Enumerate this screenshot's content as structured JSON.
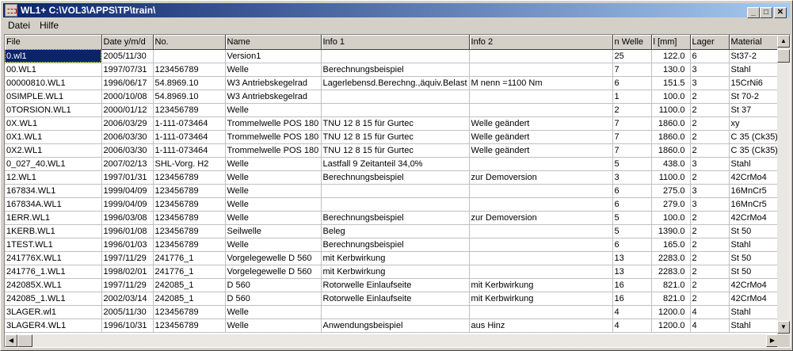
{
  "window": {
    "title": "WL1+  C:\\VOL3\\APPS\\TP\\train\\",
    "minimize": "_",
    "maximize": "□",
    "close": "✕"
  },
  "menu": [
    {
      "label": "Datei",
      "accel": "D"
    },
    {
      "label": "Hilfe",
      "accel": "H"
    }
  ],
  "table": {
    "columns": [
      "File",
      "Date  y/m/d",
      "No.",
      "Name",
      "Info 1",
      "Info 2",
      "n Welle",
      "l [mm]",
      "Lager",
      "Material"
    ],
    "selected_row": 0,
    "rows": [
      [
        "0.wl1",
        "2005/11/30",
        "",
        "Version1",
        "",
        "",
        "25",
        "122.0",
        "6",
        "St37-2"
      ],
      [
        "00.WL1",
        "1997/07/31",
        "123456789",
        "Welle",
        "Berechnungsbeispiel",
        "",
        "7",
        "130.0",
        "3",
        "Stahl"
      ],
      [
        "00000810.WL1",
        "1996/06/17",
        "54.8969.10",
        "W3 Antriebskegelrad",
        "Lagerlebensd.Berechng.,äquiv.Belast",
        "M nenn =1100 Nm",
        "6",
        "151.5",
        "3",
        "15CrNi6"
      ],
      [
        "0SIMPLE.WL1",
        "2000/10/08",
        "54.8969.10",
        "W3 Antriebskegelrad",
        "",
        "",
        "1",
        "100.0",
        "2",
        "St 70-2"
      ],
      [
        "0TORSION.WL1",
        "2000/01/12",
        "123456789",
        "Welle",
        "",
        "",
        "2",
        "1100.0",
        "2",
        "St 37"
      ],
      [
        "0X.WL1",
        "2006/03/29",
        "1-111-073464",
        "Trommelwelle POS 180",
        "TNU 12 8 15 für Gurtec",
        "Welle geändert",
        "7",
        "1860.0",
        "2",
        "xy"
      ],
      [
        "0X1.WL1",
        "2006/03/30",
        "1-111-073464",
        "Trommelwelle POS 180",
        "TNU 12 8 15 für Gurtec",
        "Welle geändert",
        "7",
        "1860.0",
        "2",
        "C 35 (Ck35)"
      ],
      [
        "0X2.WL1",
        "2006/03/30",
        "1-111-073464",
        "Trommelwelle POS 180",
        "TNU 12 8 15 für Gurtec",
        "Welle geändert",
        "7",
        "1860.0",
        "2",
        "C 35 (Ck35)"
      ],
      [
        "0_027_40.WL1",
        "2007/02/13",
        "SHL-Vorg. H2",
        "Welle",
        "Lastfall 9   Zeitanteil 34,0%",
        "",
        "5",
        "438.0",
        "3",
        "Stahl"
      ],
      [
        "12.WL1",
        "1997/01/31",
        "123456789",
        "Welle",
        "Berechnungsbeispiel",
        "zur Demoversion",
        "3",
        "1100.0",
        "2",
        "42CrMo4"
      ],
      [
        "167834.WL1",
        "1999/04/09",
        "123456789",
        "Welle",
        "",
        "",
        "6",
        "275.0",
        "3",
        "16MnCr5"
      ],
      [
        "167834A.WL1",
        "1999/04/09",
        "123456789",
        "Welle",
        "",
        "",
        "6",
        "279.0",
        "3",
        "16MnCr5"
      ],
      [
        "1ERR.WL1",
        "1996/03/08",
        "123456789",
        "Welle",
        "Berechnungsbeispiel",
        "zur Demoversion",
        "5",
        "100.0",
        "2",
        "42CrMo4"
      ],
      [
        "1KERB.WL1",
        "1996/01/08",
        "123456789",
        "Seilwelle",
        "Beleg",
        "",
        "5",
        "1390.0",
        "2",
        "St 50"
      ],
      [
        "1TEST.WL1",
        "1996/01/03",
        "123456789",
        "Welle",
        "Berechnungsbeispiel",
        "",
        "6",
        "165.0",
        "2",
        "Stahl"
      ],
      [
        "241776X.WL1",
        "1997/11/29",
        "241776_1",
        "Vorgelegewelle D 560",
        "mit Kerbwirkung",
        "",
        "13",
        "2283.0",
        "2",
        "St 50"
      ],
      [
        "241776_1.WL1",
        "1998/02/01",
        "241776_1",
        "Vorgelegewelle D 560",
        "mit Kerbwirkung",
        "",
        "13",
        "2283.0",
        "2",
        "St 50"
      ],
      [
        "242085X.WL1",
        "1997/11/29",
        "242085_1",
        "D 560",
        "Rotorwelle Einlaufseite",
        "mit Kerbwirkung",
        "16",
        "821.0",
        "2",
        "42CrMo4"
      ],
      [
        "242085_1.WL1",
        "2002/03/14",
        "242085_1",
        "D 560",
        "Rotorwelle Einlaufseite",
        "mit Kerbwirkung",
        "16",
        "821.0",
        "2",
        "42CrMo4"
      ],
      [
        "3LAGER.wl1",
        "2005/11/30",
        "123456789",
        "Welle",
        "",
        "",
        "4",
        "1200.0",
        "4",
        "Stahl"
      ],
      [
        "3LAGER4.WL1",
        "1996/10/31",
        "123456789",
        "Welle",
        "Anwendungsbeispiel",
        "aus Hinz",
        "4",
        "1200.0",
        "4",
        "Stahl"
      ]
    ]
  }
}
